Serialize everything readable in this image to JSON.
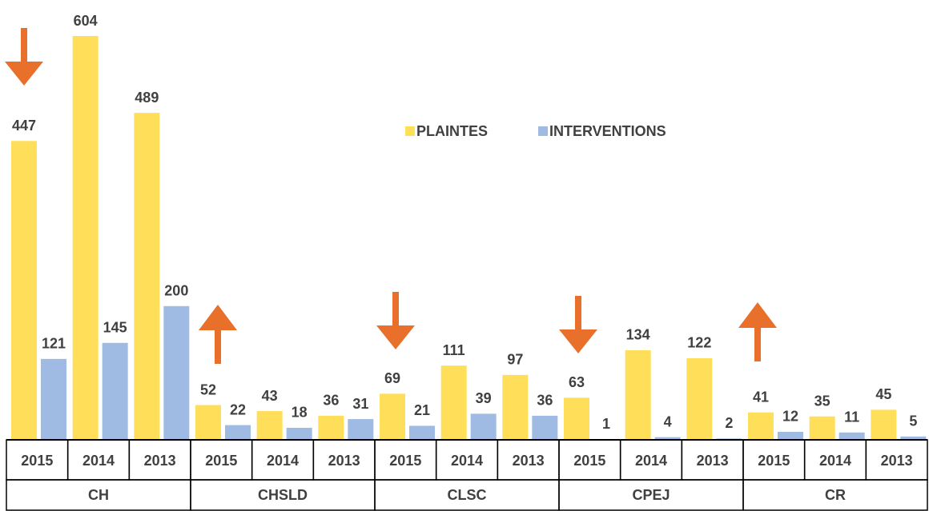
{
  "chart_data": {
    "type": "bar",
    "categories": [
      "2015",
      "2014",
      "2013",
      "2015",
      "2014",
      "2013",
      "2015",
      "2014",
      "2013",
      "2015",
      "2014",
      "2013",
      "2015",
      "2014",
      "2013"
    ],
    "groups": [
      "CH",
      "CHSLD",
      "CLSC",
      "CPEJ",
      "CR"
    ],
    "series": [
      {
        "name": "PLAINTES",
        "color": "#ffdf5a",
        "values": [
          447,
          604,
          489,
          52,
          43,
          36,
          69,
          111,
          97,
          63,
          134,
          122,
          41,
          35,
          45
        ]
      },
      {
        "name": "INTERVENTIONS",
        "color": "#9fbbe3",
        "values": [
          121,
          145,
          200,
          22,
          18,
          31,
          21,
          39,
          36,
          1,
          4,
          2,
          12,
          11,
          5
        ]
      }
    ]
  }
}
